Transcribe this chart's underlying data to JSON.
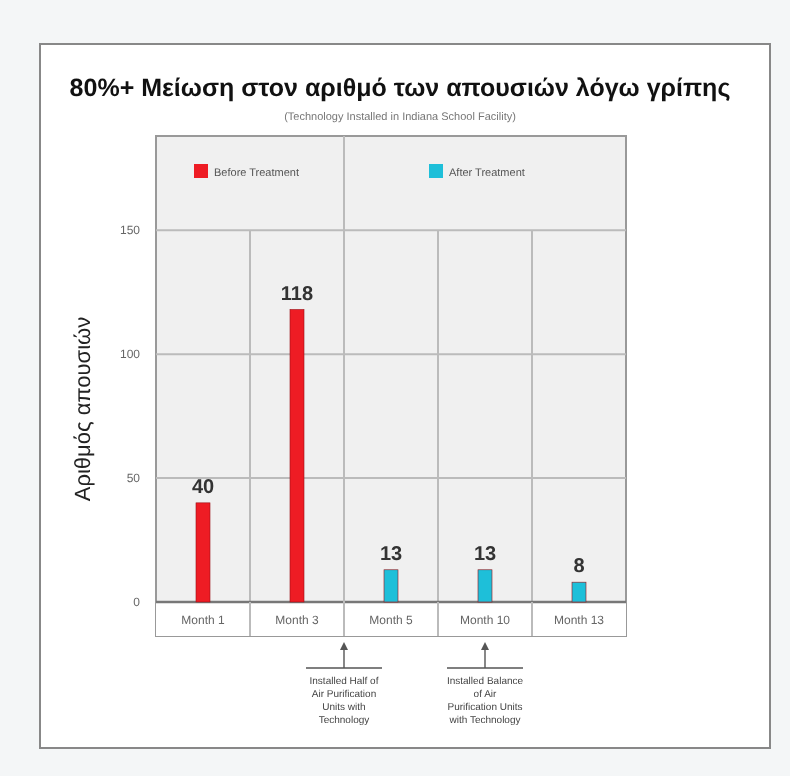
{
  "chart_data": {
    "type": "bar",
    "title": "80%+ Μείωση στον αριθμό των απουσιών λόγω γρίπης",
    "subtitle": "(Technology Installed in Indiana School Facility)",
    "ylabel": "Αριθμός απουσιών",
    "categories": [
      "Month 1",
      "Month 3",
      "Month 5",
      "Month 10",
      "Month 13"
    ],
    "series": [
      {
        "name": "Before Treatment",
        "color": "#ee1c24",
        "values": [
          40,
          118,
          null,
          null,
          null
        ]
      },
      {
        "name": "After Treatment",
        "color": "#1ebfd9",
        "values": [
          null,
          null,
          13,
          13,
          8
        ]
      }
    ],
    "ylim": [
      0,
      188
    ],
    "yticks": [
      0,
      50,
      100,
      150
    ],
    "grid": "y",
    "legend": "top",
    "data_labels": true,
    "annotations": [
      "Installed Half of Air Purification Units with Technology",
      "Installed Balance of Air Purification Units with Technology"
    ]
  }
}
